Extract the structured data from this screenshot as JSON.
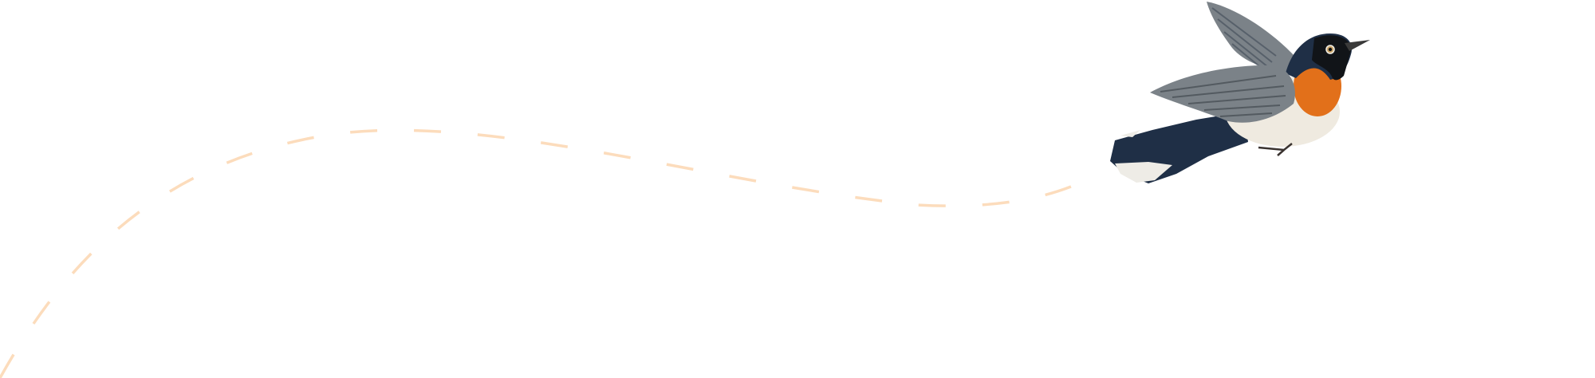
{
  "colors": {
    "background": "#ffffff",
    "flight_path": "#fcdcbc",
    "bird_back": "#1f2f46",
    "bird_throat": "#e2701a",
    "bird_belly": "#efeae0",
    "bird_wing": "#7b8288"
  }
}
